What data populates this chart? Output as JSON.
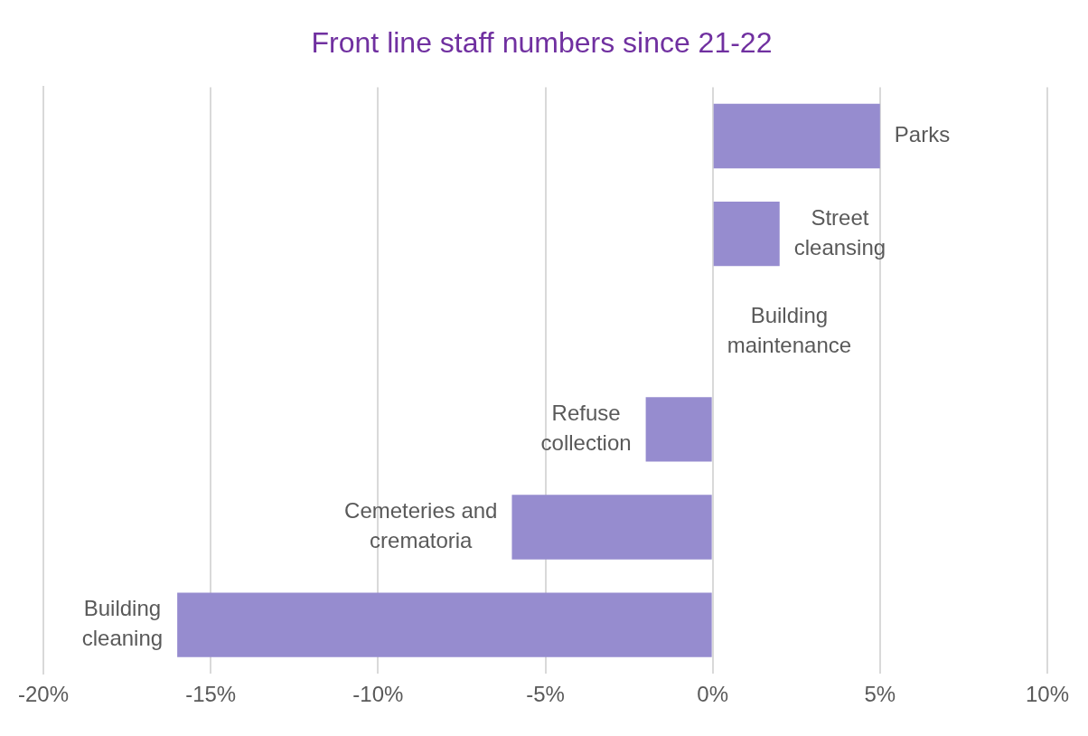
{
  "chart_data": {
    "type": "bar",
    "orientation": "horizontal",
    "title": "Front line staff numbers since 21-22",
    "categories": [
      "Parks",
      "Street cleansing",
      "Building maintenance",
      "Refuse collection",
      "Cemeteries and crematoria",
      "Building cleaning"
    ],
    "values": [
      5,
      2,
      0,
      -2,
      -6,
      -16
    ],
    "color": "#968ccf",
    "xlim": [
      -20,
      10
    ],
    "xticks": [
      {
        "value": -20,
        "label": "-20%"
      },
      {
        "value": -15,
        "label": "-15%"
      },
      {
        "value": -10,
        "label": "-10%"
      },
      {
        "value": -5,
        "label": "-5%"
      },
      {
        "value": 0,
        "label": "0%"
      },
      {
        "value": 5,
        "label": "5%"
      },
      {
        "value": 10,
        "label": "10%"
      }
    ],
    "grid": "x",
    "legend": false
  }
}
